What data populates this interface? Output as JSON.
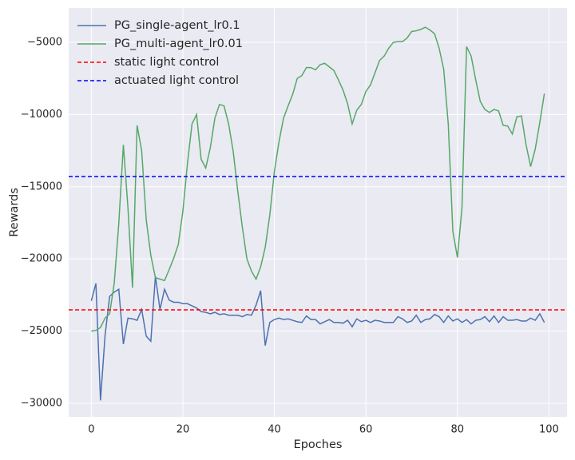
{
  "chart_data": {
    "type": "line",
    "x_label": "Epoches",
    "y_label": "Rewards",
    "x": [
      0,
      1,
      2,
      3,
      4,
      5,
      6,
      7,
      8,
      9,
      10,
      11,
      12,
      13,
      14,
      15,
      16,
      17,
      18,
      19,
      20,
      21,
      22,
      23,
      24,
      25,
      26,
      27,
      28,
      29,
      30,
      31,
      32,
      33,
      34,
      35,
      36,
      37,
      38,
      39,
      40,
      41,
      42,
      43,
      44,
      45,
      46,
      47,
      48,
      49,
      50,
      51,
      52,
      53,
      54,
      55,
      56,
      57,
      58,
      59,
      60,
      61,
      62,
      63,
      64,
      65,
      66,
      67,
      68,
      69,
      70,
      71,
      72,
      73,
      74,
      75,
      76,
      77,
      78,
      79,
      80,
      81,
      82,
      83,
      84,
      85,
      86,
      87,
      88,
      89,
      90,
      91,
      92,
      93,
      94,
      95,
      96,
      97,
      98,
      99
    ],
    "series": [
      {
        "name": "PG_single-agent_lr0.1",
        "color": "#4c72b0",
        "values": [
          -22900,
          -21700,
          -29800,
          -25300,
          -22600,
          -22300,
          -22100,
          -25900,
          -24100,
          -24150,
          -24250,
          -23500,
          -25350,
          -25700,
          -21200,
          -23500,
          -22100,
          -22850,
          -23000,
          -23000,
          -23100,
          -23100,
          -23250,
          -23400,
          -23650,
          -23700,
          -23800,
          -23700,
          -23850,
          -23800,
          -23900,
          -23900,
          -23900,
          -24000,
          -23850,
          -23900,
          -23200,
          -22200,
          -26000,
          -24400,
          -24200,
          -24100,
          -24200,
          -24150,
          -24250,
          -24350,
          -24400,
          -23950,
          -24200,
          -24200,
          -24500,
          -24350,
          -24200,
          -24400,
          -24400,
          -24450,
          -24250,
          -24700,
          -24150,
          -24350,
          -24250,
          -24400,
          -24250,
          -24300,
          -24400,
          -24400,
          -24400,
          -24000,
          -24150,
          -24400,
          -24300,
          -23900,
          -24400,
          -24200,
          -24150,
          -23850,
          -24000,
          -24400,
          -23950,
          -24300,
          -24150,
          -24400,
          -24200,
          -24500,
          -24250,
          -24200,
          -24000,
          -24350,
          -23950,
          -24400,
          -24000,
          -24250,
          -24250,
          -24200,
          -24300,
          -24300,
          -24100,
          -24250,
          -23800,
          -24400
        ]
      },
      {
        "name": "PG_multi-agent_lr0.01",
        "color": "#55a868",
        "values": [
          -25000,
          -24950,
          -24750,
          -24100,
          -23800,
          -21700,
          -17550,
          -12100,
          -16450,
          -22000,
          -10750,
          -12500,
          -17300,
          -19750,
          -21300,
          -21400,
          -21500,
          -20750,
          -19950,
          -19000,
          -16700,
          -13400,
          -10650,
          -10000,
          -13100,
          -13700,
          -12300,
          -10250,
          -9300,
          -9400,
          -10650,
          -12550,
          -15300,
          -17800,
          -20000,
          -20850,
          -21400,
          -20550,
          -19200,
          -16950,
          -13950,
          -11900,
          -10250,
          -9400,
          -8600,
          -7500,
          -7300,
          -6750,
          -6750,
          -6900,
          -6550,
          -6450,
          -6700,
          -6950,
          -7600,
          -8300,
          -9250,
          -10650,
          -9700,
          -9300,
          -8400,
          -7950,
          -7100,
          -6250,
          -5950,
          -5400,
          -5000,
          -4950,
          -4950,
          -4700,
          -4250,
          -4200,
          -4100,
          -3950,
          -4150,
          -4400,
          -5400,
          -6850,
          -10650,
          -18100,
          -19900,
          -16450,
          -5300,
          -5950,
          -7600,
          -9100,
          -9650,
          -9850,
          -9650,
          -9750,
          -10750,
          -10800,
          -11350,
          -10150,
          -10100,
          -12100,
          -13600,
          -12400,
          -10550,
          -8550
        ]
      }
    ],
    "reference_lines": [
      {
        "name": "static light control",
        "value": -23530,
        "color": "#ff0000"
      },
      {
        "name": "actuated light control",
        "value": -14300,
        "color": "#0000ff"
      }
    ],
    "xlim": [
      -4.95,
      103.95
    ],
    "ylim": [
      -30940,
      -2620
    ],
    "xticks": [
      0,
      20,
      40,
      60,
      80,
      100
    ],
    "yticks": [
      {
        "value": -30000,
        "label": "−30000"
      },
      {
        "value": -25000,
        "label": "−25000"
      },
      {
        "value": -20000,
        "label": "−20000"
      },
      {
        "value": -15000,
        "label": "−15000"
      },
      {
        "value": -10000,
        "label": "−10000"
      },
      {
        "value": -5000,
        "label": "−5000"
      }
    ],
    "grid": true,
    "legend": "upper-left",
    "background": "#eaeaf2"
  }
}
